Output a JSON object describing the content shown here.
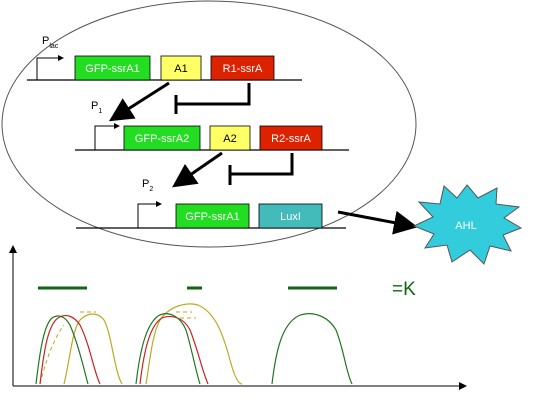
{
  "colors": {
    "gfp": "#22dd22",
    "activator": "#ffff66",
    "repressor": "#dd2200",
    "luxi": "#44bbbb",
    "ahl": "#33ccdd",
    "curve_green": "#227722",
    "curve_red": "#cc2222",
    "curve_yellow": "#bbaa22",
    "legend_green": "#116611"
  },
  "promoters": [
    {
      "id": "plac",
      "main": "P",
      "sub": "lac"
    },
    {
      "id": "p1",
      "main": "P",
      "sub": "1"
    },
    {
      "id": "p2",
      "main": "P",
      "sub": "2"
    }
  ],
  "genes": {
    "row1": [
      {
        "id": "gfp-ssra1-row1",
        "label": "GFP-ssrA1",
        "kind": "gfp"
      },
      {
        "id": "a1",
        "label": "A1",
        "kind": "activator"
      },
      {
        "id": "r1-ssra",
        "label": "R1-ssrA",
        "kind": "repressor"
      }
    ],
    "row2": [
      {
        "id": "gfp-ssra2",
        "label": "GFP-ssrA2",
        "kind": "gfp"
      },
      {
        "id": "a2",
        "label": "A2",
        "kind": "activator"
      },
      {
        "id": "r2-ssra",
        "label": "R2-ssrA",
        "kind": "repressor"
      }
    ],
    "row3": [
      {
        "id": "gfp-ssra1-row3",
        "label": "GFP-ssrA1",
        "kind": "gfp"
      },
      {
        "id": "luxi",
        "label": "LuxI",
        "kind": "luxi"
      }
    ]
  },
  "ahl": {
    "label": "AHL"
  },
  "equation": {
    "label": "=K"
  }
}
